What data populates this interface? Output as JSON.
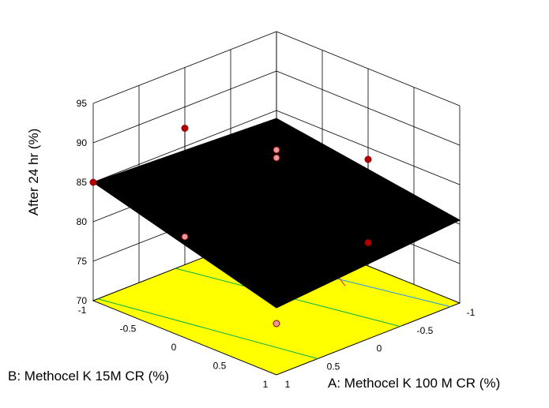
{
  "chart_data": {
    "type": "surface3d",
    "xlabel": "A: Methocel K 100 M CR (%)",
    "ylabel": "B: Methocel K 15M CR (%)",
    "zlabel": "After 24 hr (%)",
    "x_ticks": [
      "-1",
      "-0.5",
      "0",
      "0.5",
      "1"
    ],
    "y_ticks": [
      "-1",
      "-0.5",
      "0",
      "0.5",
      "1"
    ],
    "z_ticks": [
      "70",
      "75",
      "80",
      "85",
      "90",
      "95"
    ],
    "xlim": [
      -1,
      1
    ],
    "ylim": [
      -1,
      1
    ],
    "zlim": [
      70,
      95
    ],
    "grid": true,
    "surface_color": "#000000",
    "floor_color": "#ffff00",
    "surface_corners": [
      {
        "x": -1,
        "y": -1,
        "z": 84.0
      },
      {
        "x": 1,
        "y": -1,
        "z": 80.5
      },
      {
        "x": 1,
        "y": 1,
        "z": 78.5
      },
      {
        "x": -1,
        "y": 1,
        "z": 85.0
      }
    ],
    "design_points": [
      {
        "x": -1,
        "y": 1,
        "z": 85.0,
        "above": true
      },
      {
        "x": -1,
        "y": 0,
        "z": 87.3,
        "above": true
      },
      {
        "x": -1,
        "y": -1,
        "z": 80.0,
        "above": false
      },
      {
        "x": 0,
        "y": 1,
        "z": 82.8,
        "above": false
      },
      {
        "x": 0,
        "y": -1,
        "z": 83.5,
        "above": true
      },
      {
        "x": 1,
        "y": 0,
        "z": 82.2,
        "above": true
      },
      {
        "x": 1,
        "y": 1,
        "z": 76.5,
        "above": false
      },
      {
        "x": -1,
        "y": -1,
        "z": 79.0,
        "above": false
      }
    ],
    "contours": [
      {
        "color": "#00b050",
        "points": [
          [
            -1,
            0.95
          ],
          [
            1,
            0.55
          ]
        ]
      },
      {
        "color": "#00b050",
        "points": [
          [
            -1,
            0.1
          ],
          [
            1,
            -0.35
          ]
        ]
      },
      {
        "color": "#1e90ff",
        "points": [
          [
            -1,
            -0.4
          ],
          [
            1,
            -0.9
          ]
        ]
      },
      {
        "color": "#ff2020",
        "points": [
          [
            -0.6,
            -1
          ],
          [
            0.15,
            -0.6
          ]
        ]
      }
    ]
  }
}
